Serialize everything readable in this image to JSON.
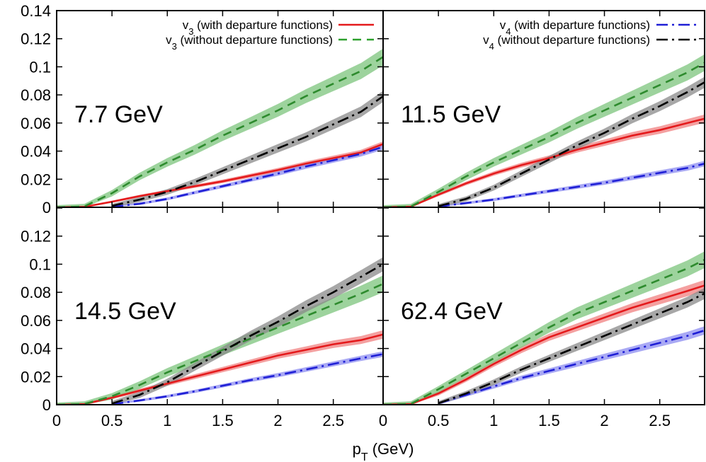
{
  "chart_data": {
    "type": "line",
    "xlabel": "p_T (GeV)",
    "xlim": [
      0,
      2.95
    ],
    "x_ticks": [
      "0",
      "0.5",
      "1",
      "1.5",
      "2",
      "2.5"
    ],
    "y_ticks_top": [
      "0",
      "0.02",
      "0.04",
      "0.06",
      "0.08",
      "0.1",
      "0.12",
      "0.14"
    ],
    "y_ticks_bottom": [
      "0",
      "0.02",
      "0.04",
      "0.06",
      "0.08",
      "0.1",
      "0.12"
    ],
    "legend": [
      {
        "base": "v",
        "sub": "3",
        "text": " (with departure functions)",
        "color": "#e41a1c",
        "dash": "solid"
      },
      {
        "base": "v",
        "sub": "3",
        "text": " (without departure functions)",
        "color": "#2ca02c",
        "dash": "dashed"
      },
      {
        "base": "v",
        "sub": "4",
        "text": " (with departure functions)",
        "color": "#1f1fd6",
        "dash": "dash-dot"
      },
      {
        "base": "v",
        "sub": "4",
        "text": " (without departure functions)",
        "color": "#000000",
        "dash": "dash-dot"
      }
    ],
    "panels": [
      {
        "label": "7.7 GeV",
        "ylim": [
          0,
          0.14
        ],
        "series": [
          {
            "key": "v3_dep",
            "x": [
              0,
              0.25,
              0.5,
              0.75,
              1,
              1.25,
              1.5,
              1.75,
              2,
              2.25,
              2.5,
              2.75,
              2.95
            ],
            "y": [
              0,
              0.0003,
              0.004,
              0.008,
              0.0115,
              0.015,
              0.0185,
              0.0225,
              0.0265,
              0.031,
              0.035,
              0.039,
              0.045
            ],
            "band": 0.002
          },
          {
            "key": "v3_nodep",
            "x": [
              0,
              0.25,
              0.5,
              0.75,
              1,
              1.25,
              1.5,
              1.75,
              2,
              2.25,
              2.5,
              2.75,
              2.95
            ],
            "y": [
              0,
              0.0006,
              0.01,
              0.022,
              0.032,
              0.041,
              0.051,
              0.06,
              0.069,
              0.079,
              0.088,
              0.097,
              0.107
            ],
            "band": 0.006
          },
          {
            "key": "v4_dep",
            "x": [
              0.5,
              0.75,
              1,
              1.25,
              1.5,
              1.75,
              2,
              2.25,
              2.5,
              2.75,
              2.95
            ],
            "y": [
              0.0003,
              0.0025,
              0.006,
              0.0105,
              0.015,
              0.0195,
              0.024,
              0.029,
              0.0335,
              0.038,
              0.043
            ],
            "band": 0.002
          },
          {
            "key": "v4_nodep",
            "x": [
              0.5,
              0.75,
              1,
              1.25,
              1.5,
              1.75,
              2,
              2.25,
              2.5,
              2.75,
              2.95
            ],
            "y": [
              0.001,
              0.0055,
              0.011,
              0.018,
              0.026,
              0.034,
              0.042,
              0.05,
              0.059,
              0.068,
              0.079
            ],
            "band": 0.004
          }
        ]
      },
      {
        "label": "11.5 GeV",
        "ylim": [
          0,
          0.14
        ],
        "series": [
          {
            "key": "v3_dep",
            "x": [
              0,
              0.25,
              0.5,
              0.75,
              1,
              1.25,
              1.5,
              1.75,
              2,
              2.25,
              2.5,
              2.75,
              2.95
            ],
            "y": [
              0,
              0.0004,
              0.009,
              0.017,
              0.024,
              0.03,
              0.035,
              0.041,
              0.046,
              0.051,
              0.055,
              0.06,
              0.064
            ],
            "band": 0.003
          },
          {
            "key": "v3_nodep",
            "x": [
              0,
              0.25,
              0.5,
              0.75,
              1,
              1.25,
              1.5,
              1.75,
              2,
              2.25,
              2.5,
              2.75,
              2.95
            ],
            "y": [
              0,
              0.0005,
              0.011,
              0.022,
              0.032,
              0.041,
              0.05,
              0.06,
              0.069,
              0.078,
              0.087,
              0.096,
              0.105
            ],
            "band": 0.006
          },
          {
            "key": "v4_dep",
            "x": [
              0.5,
              0.75,
              1,
              1.25,
              1.5,
              1.75,
              2,
              2.25,
              2.5,
              2.75,
              2.95
            ],
            "y": [
              0.0005,
              0.003,
              0.0055,
              0.0085,
              0.0115,
              0.0145,
              0.0175,
              0.021,
              0.0245,
              0.028,
              0.032
            ],
            "band": 0.002
          },
          {
            "key": "v4_nodep",
            "x": [
              0.5,
              0.75,
              1,
              1.25,
              1.5,
              1.75,
              2,
              2.25,
              2.5,
              2.75,
              2.95
            ],
            "y": [
              0.0008,
              0.006,
              0.014,
              0.024,
              0.034,
              0.044,
              0.053,
              0.063,
              0.072,
              0.082,
              0.091
            ],
            "band": 0.004
          }
        ]
      },
      {
        "label": "14.5 GeV",
        "ylim": [
          0,
          0.14
        ],
        "series": [
          {
            "key": "v3_dep",
            "x": [
              0,
              0.25,
              0.5,
              0.75,
              1,
              1.25,
              1.5,
              1.75,
              2,
              2.25,
              2.5,
              2.75,
              2.95
            ],
            "y": [
              0,
              0.0004,
              0.005,
              0.01,
              0.015,
              0.02,
              0.025,
              0.03,
              0.035,
              0.039,
              0.043,
              0.046,
              0.05
            ],
            "band": 0.003
          },
          {
            "key": "v3_nodep",
            "x": [
              0,
              0.25,
              0.5,
              0.75,
              1,
              1.25,
              1.5,
              1.75,
              2,
              2.25,
              2.5,
              2.75,
              2.95
            ],
            "y": [
              0,
              0.0005,
              0.006,
              0.014,
              0.023,
              0.031,
              0.039,
              0.047,
              0.055,
              0.063,
              0.071,
              0.079,
              0.086
            ],
            "band": 0.006
          },
          {
            "key": "v4_dep",
            "x": [
              0.5,
              0.75,
              1,
              1.25,
              1.5,
              1.75,
              2,
              2.25,
              2.5,
              2.75,
              2.95
            ],
            "y": [
              0.0003,
              0.003,
              0.006,
              0.0095,
              0.0135,
              0.0175,
              0.021,
              0.025,
              0.029,
              0.033,
              0.036
            ],
            "band": 0.002
          },
          {
            "key": "v4_nodep",
            "x": [
              0.5,
              0.75,
              1,
              1.25,
              1.5,
              1.75,
              2,
              2.25,
              2.5,
              2.75,
              2.95
            ],
            "y": [
              0.0008,
              0.007,
              0.016,
              0.027,
              0.038,
              0.049,
              0.059,
              0.07,
              0.08,
              0.091,
              0.1
            ],
            "band": 0.005
          }
        ]
      },
      {
        "label": "62.4 GeV",
        "ylim": [
          0,
          0.14
        ],
        "series": [
          {
            "key": "v3_dep",
            "x": [
              0,
              0.25,
              0.5,
              0.75,
              1,
              1.25,
              1.5,
              1.75,
              2,
              2.25,
              2.5,
              2.75,
              2.95
            ],
            "y": [
              0,
              0.0004,
              0.008,
              0.018,
              0.029,
              0.039,
              0.048,
              0.055,
              0.062,
              0.069,
              0.075,
              0.081,
              0.086
            ],
            "band": 0.004
          },
          {
            "key": "v3_nodep",
            "x": [
              0,
              0.25,
              0.5,
              0.75,
              1,
              1.25,
              1.5,
              1.75,
              2,
              2.25,
              2.5,
              2.75,
              2.95
            ],
            "y": [
              0,
              0.0005,
              0.011,
              0.022,
              0.033,
              0.044,
              0.055,
              0.065,
              0.073,
              0.081,
              0.089,
              0.097,
              0.105
            ],
            "band": 0.006
          },
          {
            "key": "v4_dep",
            "x": [
              0.5,
              0.75,
              1,
              1.25,
              1.5,
              1.75,
              2,
              2.25,
              2.5,
              2.75,
              2.95
            ],
            "y": [
              0.001,
              0.007,
              0.013,
              0.019,
              0.024,
              0.029,
              0.034,
              0.039,
              0.044,
              0.049,
              0.054
            ],
            "band": 0.003
          },
          {
            "key": "v4_nodep",
            "x": [
              0.5,
              0.75,
              1,
              1.25,
              1.5,
              1.75,
              2,
              2.25,
              2.5,
              2.75,
              2.95
            ],
            "y": [
              0.001,
              0.008,
              0.016,
              0.025,
              0.033,
              0.041,
              0.049,
              0.057,
              0.065,
              0.073,
              0.081
            ],
            "band": 0.004
          }
        ]
      }
    ]
  },
  "styles": {
    "v3_dep": {
      "color": "#e41a1c",
      "band": "#f08080",
      "dash": "solid"
    },
    "v3_nodep": {
      "color": "#2e8b2e",
      "band": "#7cc47c",
      "dash": "dashed"
    },
    "v4_dep": {
      "color": "#1f1fd6",
      "band": "#8c8cf0",
      "dash": "dash-dot"
    },
    "v4_nodep": {
      "color": "#000000",
      "band": "#8a8a8a",
      "dash": "dash-dot"
    }
  }
}
